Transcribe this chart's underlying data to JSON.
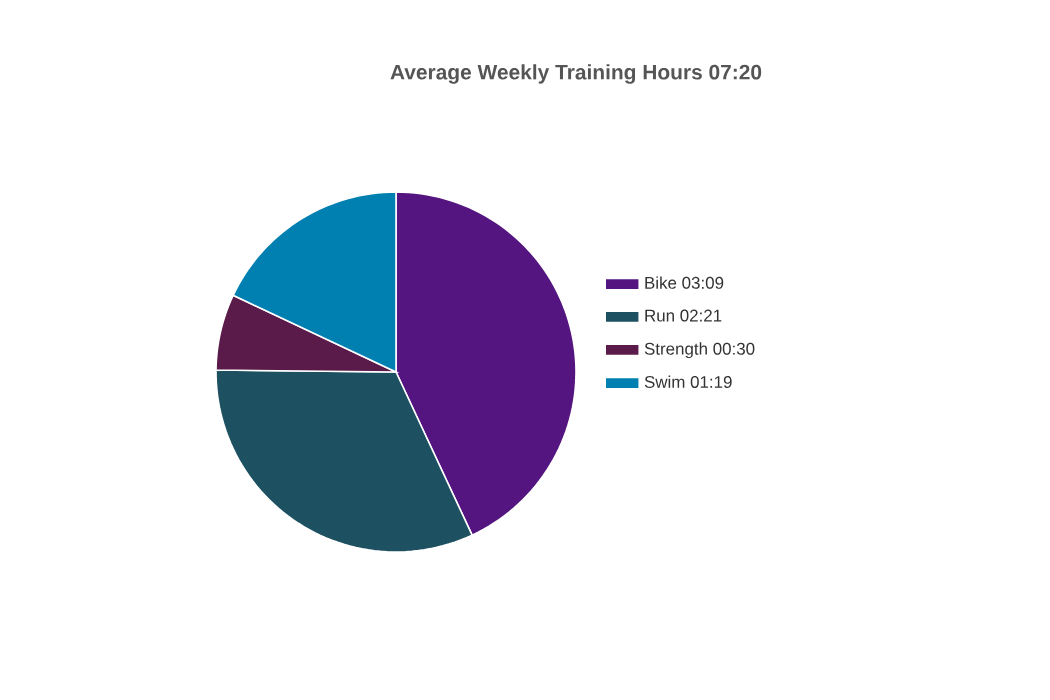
{
  "chart_data": {
    "type": "pie",
    "title": "Average Weekly Training Hours 07:20",
    "categories": [
      "Bike 03:09",
      "Run 02:21",
      "Strength 00:30",
      "Swim 01:19"
    ],
    "values": [
      189,
      141,
      30,
      79
    ],
    "colors": [
      "#541580",
      "#1d5061",
      "#5a1a4a",
      "#0080b0"
    ],
    "legend": "right"
  }
}
